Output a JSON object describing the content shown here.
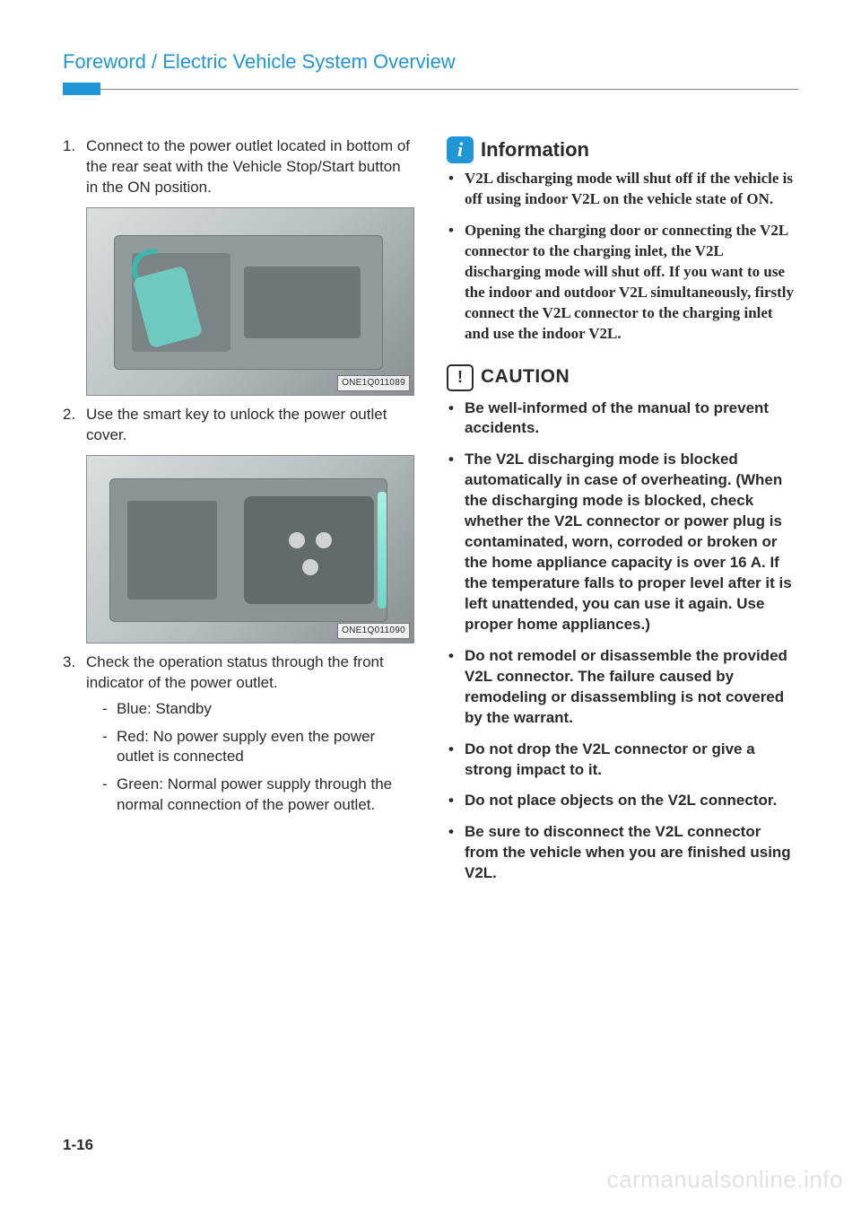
{
  "header": {
    "title": "Foreword / Electric Vehicle System Overview"
  },
  "left": {
    "steps": [
      {
        "text": "Connect to the power outlet located in bottom of the rear seat with the Vehicle Stop/Start button in the ON position."
      },
      {
        "text": "Use the smart key to unlock the power outlet cover."
      },
      {
        "text": "Check the operation status through the front indicator of the power outlet."
      }
    ],
    "fig1_caption": "ONE1Q011089",
    "fig2_caption": "ONE1Q011090",
    "status": [
      "Blue: Standby",
      "Red: No power supply even the power outlet is connected",
      "Green: Normal power supply through the normal connection of the power outlet."
    ]
  },
  "right": {
    "info_title": "Information",
    "info_items": [
      "V2L discharging mode will shut off if the vehicle is off using indoor V2L on the vehicle state of ON.",
      "Opening the charging door or connecting the V2L connector to the charging inlet, the V2L discharging mode will shut off. If you want to use the indoor and outdoor V2L simultaneously, firstly connect the V2L connector to the charging inlet and use the indoor V2L."
    ],
    "caution_title": "CAUTION",
    "caution_items": [
      "Be well-informed of the manual to prevent accidents.",
      "The V2L discharging mode is blocked automatically in case of overheating. (When the discharging mode is blocked, check whether the V2L connector or power plug is contaminated, worn, corroded or broken or the home appliance capacity is over 16 A. If the temperature falls to proper level after it is left unattended, you can use it again. Use proper home appliances.)",
      "Do not remodel or disassemble the provided V2L connector. The failure caused by remodeling or disassembling is not covered by the warrant.",
      "Do not drop the V2L connector or give a strong impact to it.",
      "Do not place objects on the V2L connector.",
      "Be sure to disconnect the V2L connector from the vehicle when you are finished using V2L."
    ]
  },
  "page_number": "1-16",
  "watermark": "carmanualsonline.info",
  "colors": {
    "accent": "#2196d6",
    "text": "#2b2b2b",
    "wm": "#e1e1e1"
  }
}
